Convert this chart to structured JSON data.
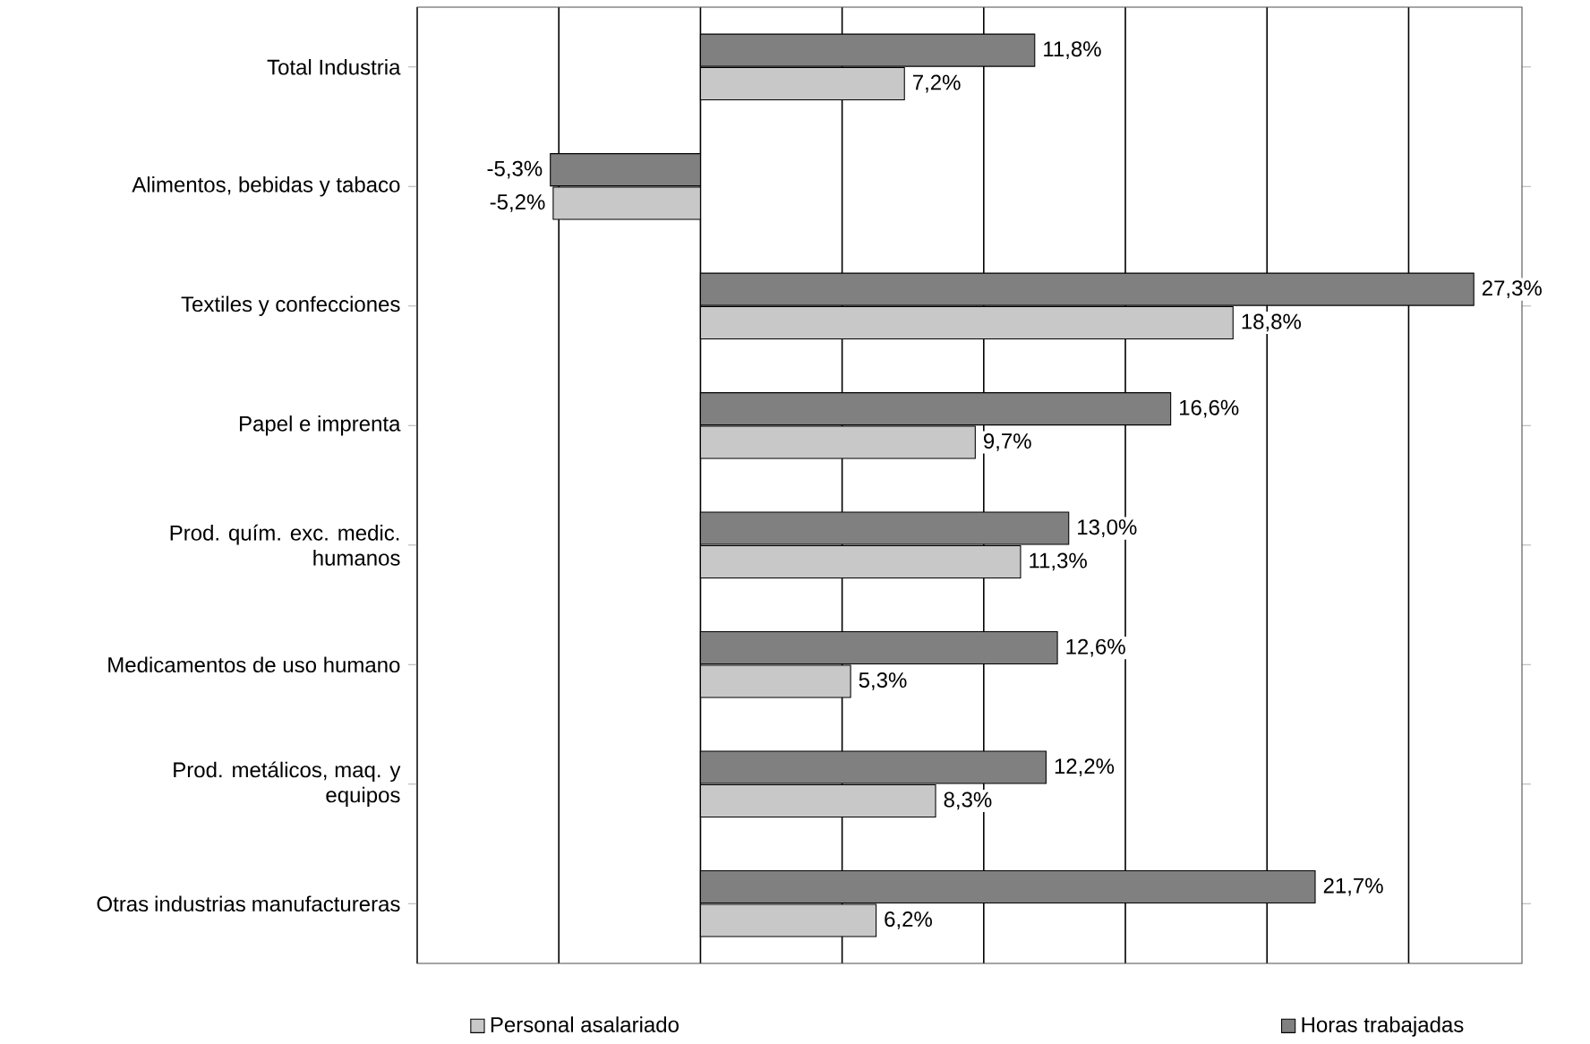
{
  "chart_data": {
    "type": "bar",
    "orientation": "horizontal",
    "categories": [
      "Total Industria",
      "Alimentos, bebidas y tabaco",
      "Textiles y confecciones",
      "Papel e imprenta",
      "Prod. quím. exc. medic. humanos",
      "Medicamentos de uso humano",
      "Prod. metálicos, maq. y equipos",
      "Otras industrias manufactureras"
    ],
    "series": [
      {
        "name": "Personal asalariado",
        "color": "#c8c8c8",
        "values": [
          7.2,
          -5.2,
          18.8,
          9.7,
          11.3,
          5.3,
          8.3,
          6.2
        ],
        "value_labels": [
          "7,2%",
          "-5,2%",
          "18,8%",
          "9,7%",
          "11,3%",
          "5,3%",
          "8,3%",
          "6,2%"
        ]
      },
      {
        "name": "Horas trabajadas",
        "color": "#808080",
        "values": [
          11.8,
          -5.3,
          27.3,
          16.6,
          13.0,
          12.6,
          12.2,
          21.7
        ],
        "value_labels": [
          "11,8%",
          "-5,3%",
          "27,3%",
          "16,6%",
          "13,0%",
          "12,6%",
          "12,2%",
          "21,7%"
        ]
      }
    ],
    "xlim": [
      -10,
      29
    ],
    "xticks": [
      {
        "value": -10,
        "label": null
      },
      {
        "value": -5,
        "label": null
      },
      {
        "value": 0,
        "label": null
      },
      {
        "value": 5,
        "label": null
      },
      {
        "value": 10,
        "label": null
      },
      {
        "value": 15,
        "label": null
      },
      {
        "value": 20,
        "label": null
      },
      {
        "value": 25,
        "label": null
      }
    ],
    "grid": "x",
    "legend": "bottom",
    "tick_labels": "y"
  }
}
